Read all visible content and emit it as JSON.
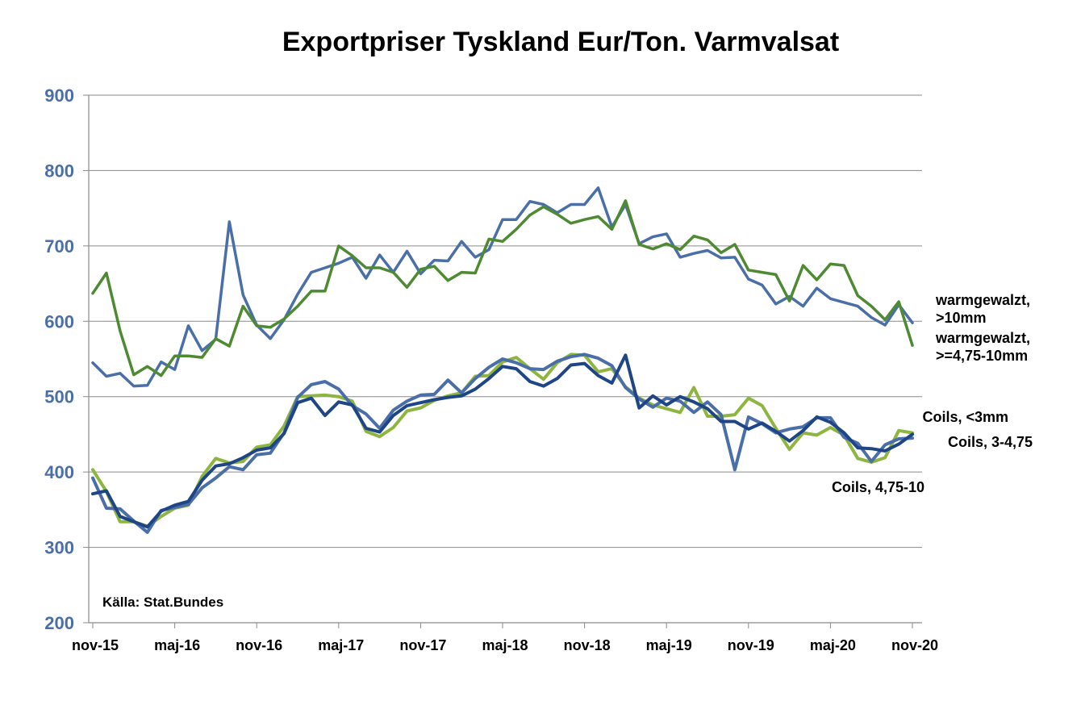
{
  "chart_data": {
    "type": "line",
    "title": "Exportpriser Tyskland Eur/Ton. Varmvalsat",
    "source_note": "Källa: Stat.Bundes",
    "ylim": [
      200,
      900
    ],
    "yticks": [
      200,
      300,
      400,
      500,
      600,
      700,
      800,
      900
    ],
    "grid": true,
    "x_start": "nov-15",
    "x_end": "nov-20",
    "x_tick_labels": [
      "nov-15",
      "maj-16",
      "nov-16",
      "maj-17",
      "nov-17",
      "maj-18",
      "nov-18",
      "maj-19",
      "nov-19",
      "maj-20",
      "nov-20"
    ],
    "series": [
      {
        "name": "warmgewalzt, >10mm",
        "label_lines": [
          "warmgewalzt,",
          ">10mm"
        ],
        "color": "#4a6fa8",
        "values": [
          545,
          527,
          531,
          514,
          515,
          546,
          536,
          594,
          561,
          576,
          732,
          635,
          595,
          577,
          602,
          636,
          665,
          671,
          677,
          685,
          657,
          688,
          665,
          693,
          663,
          681,
          680,
          706,
          685,
          695,
          735,
          735,
          759,
          755,
          744,
          755,
          755,
          777,
          725,
          755,
          703,
          712,
          716,
          685,
          690,
          694,
          684,
          685,
          656,
          648,
          623,
          633,
          620,
          644,
          630,
          625,
          620,
          605,
          595,
          622,
          598
        ]
      },
      {
        "name": "warmgewalzt, >=4,75-10mm",
        "label_lines": [
          "warmgewalzt,",
          ">=4,75-10mm"
        ],
        "color": "#4e8a32",
        "values": [
          637,
          664,
          587,
          529,
          540,
          528,
          554,
          554,
          552,
          577,
          567,
          620,
          594,
          592,
          603,
          620,
          640,
          640,
          700,
          687,
          671,
          671,
          665,
          645,
          669,
          673,
          654,
          665,
          664,
          709,
          706,
          722,
          741,
          752,
          742,
          730,
          735,
          739,
          722,
          760,
          702,
          696,
          703,
          695,
          713,
          708,
          691,
          702,
          668,
          665,
          662,
          627,
          674,
          655,
          676,
          674,
          634,
          620,
          602,
          626,
          568
        ]
      },
      {
        "name": "Coils, <3mm",
        "label_lines": [
          "Coils, <3mm"
        ],
        "color": "#8db53f",
        "values": [
          403,
          374,
          334,
          334,
          328,
          341,
          352,
          356,
          394,
          418,
          412,
          414,
          433,
          436,
          461,
          500,
          501,
          502,
          500,
          494,
          454,
          447,
          459,
          481,
          485,
          495,
          501,
          505,
          527,
          528,
          546,
          552,
          537,
          523,
          545,
          556,
          555,
          533,
          537,
          513,
          498,
          489,
          484,
          479,
          512,
          474,
          474,
          476,
          498,
          488,
          458,
          430,
          452,
          449,
          459,
          449,
          418,
          413,
          419,
          455,
          452
        ]
      },
      {
        "name": "Coils, 3-4,75",
        "label_lines": [
          "Coils, 3-4,75"
        ],
        "color": "#4a6fa8",
        "values": [
          392,
          352,
          351,
          335,
          320,
          349,
          353,
          357,
          379,
          392,
          407,
          403,
          423,
          425,
          452,
          499,
          516,
          520,
          510,
          488,
          477,
          458,
          482,
          494,
          502,
          503,
          522,
          505,
          524,
          539,
          550,
          545,
          537,
          536,
          547,
          553,
          556,
          551,
          541,
          512,
          497,
          486,
          498,
          494,
          479,
          493,
          476,
          403,
          473,
          464,
          452,
          457,
          460,
          472,
          472,
          446,
          438,
          414,
          436,
          444,
          445
        ]
      },
      {
        "name": "Coils, 4,75-10",
        "label_lines": [
          "Coils, 4,75-10"
        ],
        "color": "#1e4585",
        "values": [
          371,
          375,
          341,
          334,
          327,
          348,
          356,
          361,
          389,
          408,
          411,
          419,
          429,
          432,
          451,
          492,
          498,
          475,
          493,
          489,
          458,
          453,
          475,
          488,
          492,
          496,
          499,
          501,
          510,
          524,
          540,
          537,
          520,
          514,
          524,
          542,
          544,
          528,
          518,
          555,
          485,
          501,
          489,
          500,
          493,
          484,
          467,
          467,
          457,
          465,
          454,
          441,
          455,
          473,
          466,
          452,
          432,
          431,
          428,
          437,
          450
        ]
      }
    ]
  }
}
